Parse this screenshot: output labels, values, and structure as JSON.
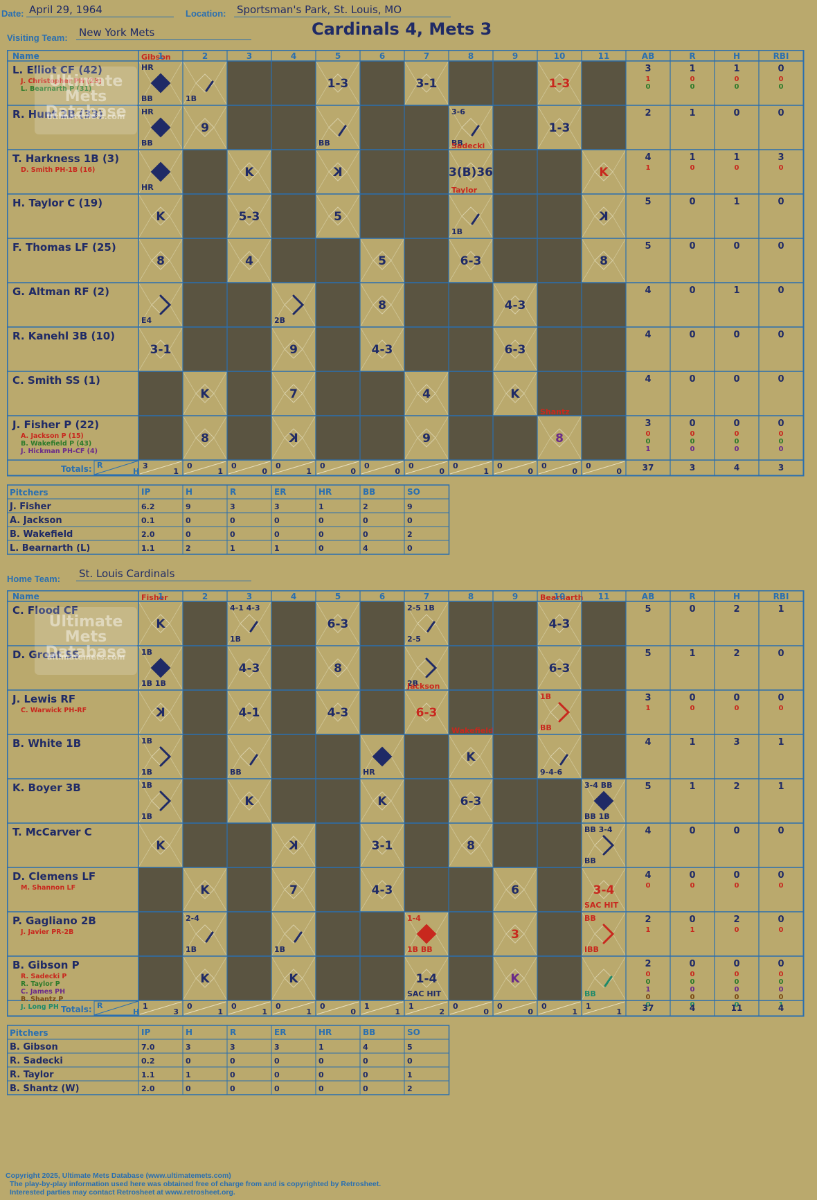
{
  "header": {
    "date_label": "Date:",
    "date": "April 29, 1964",
    "location_label": "Location:",
    "location": "Sportsman's Park, St. Louis, MO",
    "visiting_label": "Visiting Team:",
    "visiting_team": "New York Mets",
    "home_label": "Home Team:",
    "home_team": "St. Louis Cardinals",
    "title": "Cardinals 4, Mets 3"
  },
  "labels": {
    "name": "Name",
    "innings": [
      "1",
      "2",
      "3",
      "4",
      "5",
      "6",
      "7",
      "8",
      "9",
      "10",
      "11"
    ],
    "stats": [
      "AB",
      "R",
      "H",
      "RBI"
    ],
    "totals": "Totals:",
    "r": "R",
    "h": "H",
    "pitchers": "Pitchers",
    "pitch_cols": [
      "IP",
      "H",
      "R",
      "ER",
      "HR",
      "BB",
      "SO"
    ]
  },
  "visitors": {
    "batters": [
      {
        "name": "L. Elliot CF (42)",
        "subs": [
          {
            "n": "J. Christopher PH (23)",
            "c": "red"
          },
          {
            "n": "L. Bearnarth P (31)",
            "c": "green"
          }
        ],
        "stats": [
          [
            "3",
            "1",
            "1",
            "0"
          ],
          [
            "1",
            "0",
            "0",
            "0"
          ],
          [
            "0",
            "0",
            "0",
            "0"
          ]
        ]
      },
      {
        "name": "R. Hunt 2B (33)",
        "subs": [],
        "stats": [
          [
            "2",
            "1",
            "0",
            "0"
          ]
        ]
      },
      {
        "name": "T. Harkness 1B (3)",
        "subs": [
          {
            "n": "D. Smith PH-1B (16)",
            "c": "red"
          }
        ],
        "stats": [
          [
            "4",
            "1",
            "1",
            "3"
          ],
          [
            "1",
            "0",
            "0",
            "0"
          ]
        ]
      },
      {
        "name": "H. Taylor C (19)",
        "subs": [],
        "stats": [
          [
            "5",
            "0",
            "1",
            "0"
          ]
        ]
      },
      {
        "name": "F. Thomas LF (25)",
        "subs": [],
        "stats": [
          [
            "5",
            "0",
            "0",
            "0"
          ]
        ]
      },
      {
        "name": "G. Altman RF (2)",
        "subs": [],
        "stats": [
          [
            "4",
            "0",
            "1",
            "0"
          ]
        ]
      },
      {
        "name": "R. Kanehl 3B (10)",
        "subs": [],
        "stats": [
          [
            "4",
            "0",
            "0",
            "0"
          ]
        ]
      },
      {
        "name": "C. Smith SS (1)",
        "subs": [],
        "stats": [
          [
            "4",
            "0",
            "0",
            "0"
          ]
        ]
      },
      {
        "name": "J. Fisher P (22)",
        "subs": [
          {
            "n": "A. Jackson P (15)",
            "c": "red"
          },
          {
            "n": "B. Wakefield P (43)",
            "c": "green"
          },
          {
            "n": "J. Hickman PH-CF (4)",
            "c": "purple"
          }
        ],
        "stats": [
          [
            "3",
            "0",
            "0",
            "0"
          ],
          [
            "0",
            "0",
            "0",
            "0"
          ],
          [
            "0",
            "0",
            "0",
            "0"
          ],
          [
            "1",
            "0",
            "0",
            "0"
          ]
        ]
      }
    ],
    "cells": [
      [
        {
          "d": "filled",
          "t": "",
          "a": [
            "HR",
            "BB"
          ],
          "p": "Gibson"
        },
        {
          "d": "1b",
          "t": "",
          "a": [
            "1B"
          ]
        },
        null,
        null,
        {
          "d": "empty",
          "t": "1-3"
        },
        null,
        {
          "d": "empty",
          "t": "3-1"
        },
        null,
        null,
        {
          "d": "empty",
          "t": "1-3",
          "c": "red"
        },
        null
      ],
      [
        {
          "d": "filled",
          "t": "",
          "a": [
            "HR",
            "BB"
          ]
        },
        {
          "d": "empty",
          "t": "9"
        },
        null,
        null,
        {
          "d": "1b",
          "t": "",
          "a": [
            "BB"
          ]
        },
        null,
        null,
        {
          "d": "1b",
          "t": "",
          "a": [
            "3-6",
            "BB"
          ]
        },
        null,
        {
          "d": "empty",
          "t": "1-3"
        },
        null
      ],
      [
        {
          "d": "filled",
          "t": "",
          "a": [
            "HR"
          ]
        },
        null,
        {
          "d": "empty",
          "t": "K"
        },
        null,
        {
          "d": "empty",
          "t": "K",
          "mir": true
        },
        null,
        null,
        {
          "d": "empty",
          "t": "3(B)36",
          "p": "Sadecki"
        },
        null,
        null,
        {
          "d": "empty",
          "t": "K",
          "c": "red"
        }
      ],
      [
        {
          "d": "empty",
          "t": "K"
        },
        null,
        {
          "d": "empty",
          "t": "5-3"
        },
        null,
        {
          "d": "empty",
          "t": "5"
        },
        null,
        null,
        {
          "d": "1b",
          "t": "",
          "a": [
            "1B"
          ],
          "p": "Taylor"
        },
        null,
        null,
        {
          "d": "empty",
          "t": "K",
          "mir": true
        }
      ],
      [
        {
          "d": "empty",
          "t": "8"
        },
        null,
        {
          "d": "empty",
          "t": "4"
        },
        null,
        null,
        {
          "d": "empty",
          "t": "5"
        },
        null,
        {
          "d": "empty",
          "t": "6-3"
        },
        null,
        null,
        {
          "d": "empty",
          "t": "8"
        }
      ],
      [
        {
          "d": "2b",
          "t": "",
          "a": [
            "E4"
          ]
        },
        null,
        null,
        {
          "d": "2b",
          "t": "",
          "a": [
            "2B"
          ]
        },
        null,
        {
          "d": "empty",
          "t": "8"
        },
        null,
        null,
        {
          "d": "empty",
          "t": "4-3"
        },
        null,
        null
      ],
      [
        {
          "d": "empty",
          "t": "3-1"
        },
        null,
        null,
        {
          "d": "empty",
          "t": "9"
        },
        null,
        {
          "d": "empty",
          "t": "4-3"
        },
        null,
        null,
        {
          "d": "empty",
          "t": "6-3"
        },
        null,
        null
      ],
      [
        null,
        {
          "d": "empty",
          "t": "K"
        },
        null,
        {
          "d": "empty",
          "t": "7"
        },
        null,
        null,
        {
          "d": "empty",
          "t": "4"
        },
        null,
        {
          "d": "empty",
          "t": "K"
        },
        null,
        null
      ],
      [
        null,
        {
          "d": "empty",
          "t": "8"
        },
        null,
        {
          "d": "empty",
          "t": "K",
          "mir": true
        },
        null,
        null,
        {
          "d": "empty",
          "t": "9"
        },
        null,
        null,
        {
          "d": "empty",
          "t": "8",
          "c": "purple",
          "p": "Shantz"
        },
        null
      ]
    ],
    "totals": [
      [
        "3",
        "1"
      ],
      [
        "0",
        "1"
      ],
      [
        "0",
        "0"
      ],
      [
        "0",
        "1"
      ],
      [
        "0",
        "0"
      ],
      [
        "0",
        "0"
      ],
      [
        "0",
        "0"
      ],
      [
        "0",
        "1"
      ],
      [
        "0",
        "0"
      ],
      [
        "0",
        "0"
      ],
      [
        "0",
        "0"
      ]
    ],
    "total_stats": [
      "37",
      "3",
      "4",
      "3"
    ],
    "pitchers": [
      [
        "J. Fisher",
        "6.2",
        "9",
        "3",
        "3",
        "1",
        "2",
        "9"
      ],
      [
        "A. Jackson",
        "0.1",
        "0",
        "0",
        "0",
        "0",
        "0",
        "0"
      ],
      [
        "B. Wakefield",
        "2.0",
        "0",
        "0",
        "0",
        "0",
        "0",
        "2"
      ],
      [
        "L. Bearnarth (L)",
        "1.1",
        "2",
        "1",
        "1",
        "0",
        "4",
        "0"
      ]
    ]
  },
  "home": {
    "batters": [
      {
        "name": "C. Flood CF",
        "subs": [],
        "stats": [
          [
            "5",
            "0",
            "2",
            "1"
          ]
        ]
      },
      {
        "name": "D. Groat SS",
        "subs": [],
        "stats": [
          [
            "5",
            "1",
            "2",
            "0"
          ]
        ]
      },
      {
        "name": "J. Lewis RF",
        "subs": [
          {
            "n": "C. Warwick PH-RF",
            "c": "red"
          }
        ],
        "stats": [
          [
            "3",
            "0",
            "0",
            "0"
          ],
          [
            "1",
            "0",
            "0",
            "0"
          ]
        ]
      },
      {
        "name": "B. White 1B",
        "subs": [],
        "stats": [
          [
            "4",
            "1",
            "3",
            "1"
          ]
        ]
      },
      {
        "name": "K. Boyer 3B",
        "subs": [],
        "stats": [
          [
            "5",
            "1",
            "2",
            "1"
          ]
        ]
      },
      {
        "name": "T. McCarver C",
        "subs": [],
        "stats": [
          [
            "4",
            "0",
            "0",
            "0"
          ]
        ]
      },
      {
        "name": "D. Clemens LF",
        "subs": [
          {
            "n": "M. Shannon LF",
            "c": "red"
          }
        ],
        "stats": [
          [
            "4",
            "0",
            "0",
            "0"
          ],
          [
            "0",
            "0",
            "0",
            "0"
          ]
        ]
      },
      {
        "name": "P. Gagliano 2B",
        "subs": [
          {
            "n": "J. Javier PR-2B",
            "c": "red"
          }
        ],
        "stats": [
          [
            "2",
            "0",
            "2",
            "0"
          ],
          [
            "1",
            "1",
            "0",
            "0"
          ]
        ]
      },
      {
        "name": "B. Gibson P",
        "subs": [
          {
            "n": "R. Sadecki P",
            "c": "red"
          },
          {
            "n": "R. Taylor P",
            "c": "green"
          },
          {
            "n": "C. James PH",
            "c": "purple"
          },
          {
            "n": "B. Shantz P",
            "c": "brown"
          },
          {
            "n": "J. Long PH",
            "c": "teal"
          }
        ],
        "stats": [
          [
            "2",
            "0",
            "0",
            "0"
          ],
          [
            "0",
            "0",
            "0",
            "0"
          ],
          [
            "0",
            "0",
            "0",
            "0"
          ],
          [
            "1",
            "0",
            "0",
            "0"
          ],
          [
            "0",
            "0",
            "0",
            "0"
          ],
          [
            "0",
            "0",
            "0",
            "1"
          ]
        ]
      }
    ],
    "cells": [
      [
        {
          "d": "empty",
          "t": "K",
          "p": "Fisher"
        },
        null,
        {
          "d": "1b",
          "t": "",
          "a": [
            "4-1 4-3",
            "1B"
          ]
        },
        null,
        {
          "d": "empty",
          "t": "6-3"
        },
        null,
        {
          "d": "1b",
          "t": "",
          "a": [
            "2-5 1B",
            "2-5"
          ]
        },
        null,
        null,
        {
          "d": "empty",
          "t": "4-3",
          "p": "Bearnarth"
        },
        null
      ],
      [
        {
          "d": "filled",
          "t": "",
          "a": [
            "1B",
            "1B 1B"
          ]
        },
        null,
        {
          "d": "empty",
          "t": "4-3"
        },
        null,
        {
          "d": "empty",
          "t": "8"
        },
        null,
        {
          "d": "2b",
          "t": "",
          "a": [
            "2B"
          ]
        },
        null,
        null,
        {
          "d": "empty",
          "t": "6-3"
        },
        null
      ],
      [
        {
          "d": "empty",
          "t": "K",
          "mir": true
        },
        null,
        {
          "d": "empty",
          "t": "4-1"
        },
        null,
        {
          "d": "empty",
          "t": "4-3"
        },
        null,
        {
          "d": "empty",
          "t": "6-3",
          "c": "red",
          "p": "Jackson"
        },
        null,
        null,
        {
          "d": "2b",
          "t": "",
          "a": [
            "1B",
            "BB"
          ],
          "c": "red"
        },
        null
      ],
      [
        {
          "d": "2b",
          "t": "",
          "a": [
            "1B",
            "1B"
          ]
        },
        null,
        {
          "d": "1b",
          "t": "",
          "a": [
            "BB"
          ]
        },
        null,
        null,
        {
          "d": "filled",
          "t": "",
          "a": [
            "HR"
          ]
        },
        null,
        {
          "d": "empty",
          "t": "K",
          "p": "Wakefield"
        },
        null,
        {
          "d": "1b",
          "t": "",
          "a": [
            "9-4-6"
          ]
        },
        null
      ],
      [
        {
          "d": "2b",
          "t": "",
          "a": [
            "1B",
            "1B"
          ]
        },
        null,
        {
          "d": "empty",
          "t": "K"
        },
        null,
        null,
        {
          "d": "empty",
          "t": "K"
        },
        null,
        {
          "d": "empty",
          "t": "6-3"
        },
        null,
        null,
        {
          "d": "filled",
          "t": "",
          "a": [
            "3-4 BB",
            "BB 1B"
          ]
        }
      ],
      [
        {
          "d": "empty",
          "t": "K"
        },
        null,
        null,
        {
          "d": "empty",
          "t": "K",
          "mir": true
        },
        null,
        {
          "d": "empty",
          "t": "3-1"
        },
        null,
        {
          "d": "empty",
          "t": "8"
        },
        null,
        null,
        {
          "d": "2b",
          "t": "",
          "a": [
            "BB 3-4",
            "BB"
          ]
        }
      ],
      [
        null,
        {
          "d": "empty",
          "t": "K"
        },
        null,
        {
          "d": "empty",
          "t": "7"
        },
        null,
        {
          "d": "empty",
          "t": "4-3"
        },
        null,
        null,
        {
          "d": "empty",
          "t": "6"
        },
        null,
        {
          "d": "empty",
          "t": "3-4",
          "c": "red",
          "a": [
            "SAC HIT"
          ]
        }
      ],
      [
        null,
        {
          "d": "1b",
          "t": "",
          "a": [
            "2-4",
            "1B"
          ]
        },
        null,
        {
          "d": "1b",
          "t": "",
          "a": [
            "1B"
          ]
        },
        null,
        null,
        {
          "d": "filled",
          "t": "",
          "a": [
            "1-4",
            "1B BB"
          ],
          "c": "red"
        },
        null,
        {
          "d": "empty",
          "t": "3",
          "c": "red"
        },
        null,
        {
          "d": "2b",
          "t": "",
          "a": [
            "BB",
            "IBB"
          ],
          "c": "red"
        }
      ],
      [
        null,
        {
          "d": "empty",
          "t": "K"
        },
        null,
        {
          "d": "empty",
          "t": "K"
        },
        null,
        null,
        {
          "d": "empty",
          "t": "1-4",
          "a": [
            "SAC HIT"
          ]
        },
        null,
        {
          "d": "empty",
          "t": "K",
          "c": "purple"
        },
        null,
        {
          "d": "1b",
          "t": "",
          "a": [
            "BB"
          ],
          "c": "teal"
        }
      ]
    ],
    "totals": [
      [
        "1",
        "3"
      ],
      [
        "0",
        "1"
      ],
      [
        "0",
        "1"
      ],
      [
        "0",
        "1"
      ],
      [
        "0",
        "0"
      ],
      [
        "1",
        "1"
      ],
      [
        "1",
        "2"
      ],
      [
        "0",
        "0"
      ],
      [
        "0",
        "0"
      ],
      [
        "0",
        "1"
      ],
      [
        "1",
        "1"
      ]
    ],
    "total_stats": [
      "37",
      "4",
      "11",
      "4"
    ],
    "pitchers": [
      [
        "B. Gibson",
        "7.0",
        "3",
        "3",
        "3",
        "1",
        "4",
        "5"
      ],
      [
        "R. Sadecki",
        "0.2",
        "0",
        "0",
        "0",
        "0",
        "0",
        "0"
      ],
      [
        "R. Taylor",
        "1.1",
        "1",
        "0",
        "0",
        "0",
        "0",
        "1"
      ],
      [
        "B. Shantz (W)",
        "2.0",
        "0",
        "0",
        "0",
        "0",
        "0",
        "2"
      ]
    ]
  },
  "watermark": [
    "Ultimate",
    "Mets",
    "Database",
    "ultimatemets.com"
  ],
  "footer": [
    "Copyright 2025, Ultimate Mets Database (www.ultimatemets.com)",
    "The play-by-play information used here was obtained free of charge from and is copyrighted by Retrosheet.",
    "Interested parties may contact Retrosheet at www.retrosheet.org."
  ],
  "colors": {
    "navy": "#1f2a66",
    "grid": "#2a6fb0",
    "dark": "#5a5441",
    "paper": "#baa96d",
    "red": "#c8281e",
    "green": "#2d7a2a",
    "purple": "#6a2a8a",
    "brown": "#7a4a14",
    "teal": "#1f8a6a"
  }
}
